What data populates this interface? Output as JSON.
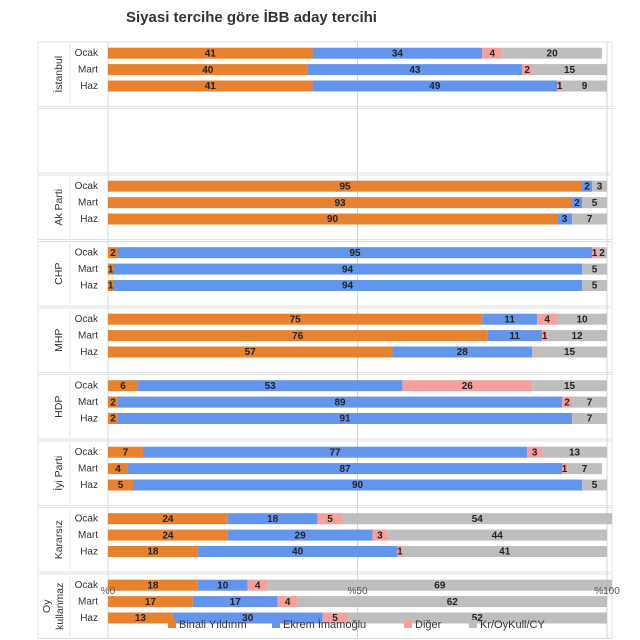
{
  "chart_data": {
    "type": "bar",
    "orientation": "horizontal-stacked-100",
    "title": "Siyasi tercihe göre İBB aday tercihi",
    "x_ticks": [
      "%0",
      "%50",
      "%100"
    ],
    "xlim": [
      0,
      100
    ],
    "series": [
      {
        "name": "Binali Yıldırım",
        "color": "#E8822F"
      },
      {
        "name": "Ekrem İmamoğlu",
        "color": "#6495ED"
      },
      {
        "name": "Diğer",
        "color": "#F4A09C"
      },
      {
        "name": "Kr/OyKull/CY",
        "color": "#BEBEBE"
      }
    ],
    "groups": [
      {
        "label": "İstanbul",
        "rows": [
          {
            "period": "Ocak",
            "values": [
              41,
              34,
              4,
              20
            ]
          },
          {
            "period": "Mart",
            "values": [
              40,
              43,
              2,
              15
            ]
          },
          {
            "period": "Haz",
            "values": [
              41,
              49,
              1,
              9
            ]
          }
        ]
      },
      {
        "label": "",
        "rows": []
      },
      {
        "label": "Ak Parti",
        "rows": [
          {
            "period": "Ocak",
            "values": [
              95,
              2,
              0,
              3
            ]
          },
          {
            "period": "Mart",
            "values": [
              93,
              2,
              0,
              5
            ]
          },
          {
            "period": "Haz",
            "values": [
              90,
              3,
              0,
              7
            ]
          }
        ]
      },
      {
        "label": "CHP",
        "rows": [
          {
            "period": "Ocak",
            "values": [
              2,
              95,
              1,
              2
            ]
          },
          {
            "period": "Mart",
            "values": [
              1,
              94,
              0,
              5
            ]
          },
          {
            "period": "Haz",
            "values": [
              1,
              94,
              0,
              5
            ]
          }
        ]
      },
      {
        "label": "MHP",
        "rows": [
          {
            "period": "Ocak",
            "values": [
              75,
              11,
              4,
              10
            ]
          },
          {
            "period": "Mart",
            "values": [
              76,
              11,
              1,
              12
            ]
          },
          {
            "period": "Haz",
            "values": [
              57,
              28,
              0,
              15
            ]
          }
        ]
      },
      {
        "label": "HDP",
        "rows": [
          {
            "period": "Ocak",
            "values": [
              6,
              53,
              26,
              15
            ]
          },
          {
            "period": "Mart",
            "values": [
              2,
              89,
              2,
              7
            ]
          },
          {
            "period": "Haz",
            "values": [
              2,
              91,
              0,
              7
            ]
          }
        ]
      },
      {
        "label": "İyi Parti",
        "rows": [
          {
            "period": "Ocak",
            "values": [
              7,
              77,
              3,
              13
            ]
          },
          {
            "period": "Mart",
            "values": [
              4,
              87,
              1,
              7
            ]
          },
          {
            "period": "Haz",
            "values": [
              5,
              90,
              0,
              5
            ]
          }
        ]
      },
      {
        "label": "Kararsız",
        "rows": [
          {
            "period": "Ocak",
            "values": [
              24,
              18,
              5,
              54
            ]
          },
          {
            "period": "Mart",
            "values": [
              24,
              29,
              3,
              44
            ]
          },
          {
            "period": "Haz",
            "values": [
              18,
              40,
              1,
              41
            ]
          }
        ]
      },
      {
        "label": "Oy kullanmaz",
        "label_lines": [
          "Oy",
          "kullanmaz"
        ],
        "rows": [
          {
            "period": "Ocak",
            "values": [
              18,
              10,
              4,
              69
            ]
          },
          {
            "period": "Mart",
            "values": [
              17,
              17,
              4,
              62
            ]
          },
          {
            "period": "Haz",
            "values": [
              13,
              30,
              5,
              52
            ]
          }
        ]
      }
    ]
  }
}
